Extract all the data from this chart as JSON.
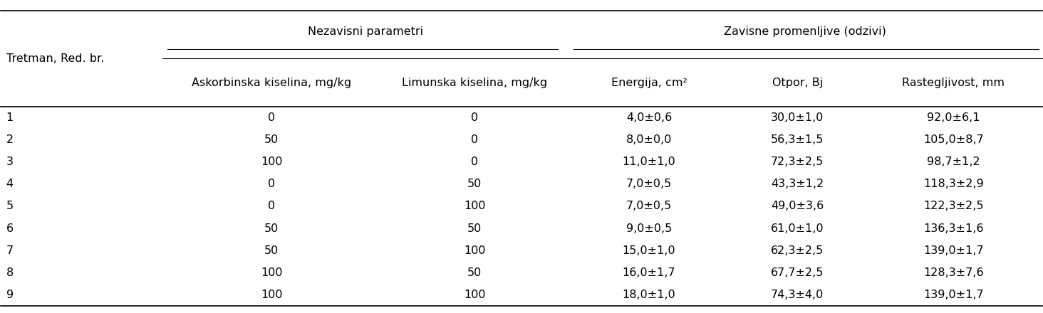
{
  "col_group1_label": "Nezavisni parametri",
  "col_group2_label": "Zavisne promenljive (odzivi)",
  "col0_label": "Tretman, Red. br.",
  "col1_label": "Askorbinska kiselina, mg/kg",
  "col2_label": "Limunska kiselina, mg/kg",
  "col3_label": "Energija, cm²",
  "col4_label": "Otpor, Bj",
  "col5_label": "Rastegljivost, mm",
  "rows": [
    [
      "1",
      "0",
      "0",
      "4,0±0,6",
      "30,0±1,0",
      "92,0±6,1"
    ],
    [
      "2",
      "50",
      "0",
      "8,0±0,0",
      "56,3±1,5",
      "105,0±8,7"
    ],
    [
      "3",
      "100",
      "0",
      "11,0±1,0",
      "72,3±2,5",
      "98,7±1,2"
    ],
    [
      "4",
      "0",
      "50",
      "7,0±0,5",
      "43,3±1,2",
      "118,3±2,9"
    ],
    [
      "5",
      "0",
      "100",
      "7,0±0,5",
      "49,0±3,6",
      "122,3±2,5"
    ],
    [
      "6",
      "50",
      "50",
      "9,0±0,5",
      "61,0±1,0",
      "136,3±1,6"
    ],
    [
      "7",
      "50",
      "100",
      "15,0±1,0",
      "62,3±2,5",
      "139,0±1,7"
    ],
    [
      "8",
      "100",
      "50",
      "16,0±1,7",
      "67,7±2,5",
      "128,3±7,6"
    ],
    [
      "9",
      "100",
      "100",
      "18,0±1,0",
      "74,3±4,0",
      "139,0±1,7"
    ]
  ],
  "col_alignments": [
    "left",
    "center",
    "center",
    "center",
    "center",
    "center"
  ],
  "background_color": "#ffffff",
  "line_color": "#000000",
  "font_size": 11.5
}
